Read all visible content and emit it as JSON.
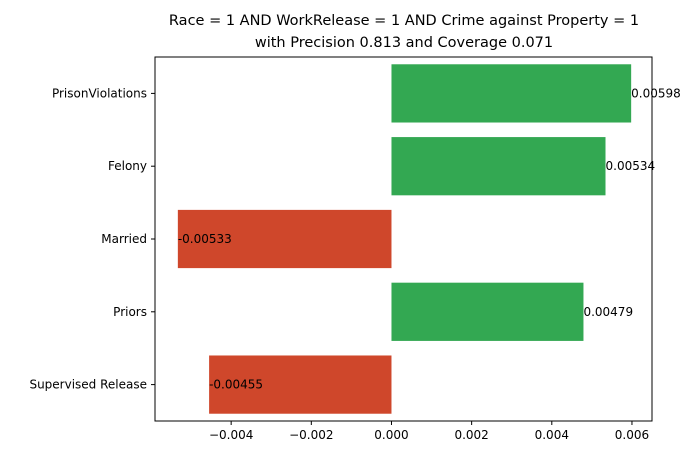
{
  "chart_data": {
    "type": "bar",
    "orientation": "horizontal",
    "title": [
      "Race = 1 AND WorkRelease = 1 AND Crime against Property = 1",
      "with Precision 0.813 and Coverage 0.071"
    ],
    "xlabel": "",
    "ylabel": "",
    "categories": [
      "PrisonViolations",
      "Felony",
      "Married",
      "Priors",
      "Supervised Release"
    ],
    "values": [
      0.00598,
      0.00534,
      -0.00533,
      0.00479,
      -0.00455
    ],
    "value_labels": [
      "0.00598",
      "0.00534",
      "-0.00533",
      "0.00479",
      "-0.00455"
    ],
    "xlim": [
      -0.0059,
      0.0065
    ],
    "xticks": [
      -0.004,
      -0.002,
      0.0,
      0.002,
      0.004,
      0.006
    ],
    "xtick_labels": [
      "−0.004",
      "−0.002",
      "0.000",
      "0.002",
      "0.004",
      "0.006"
    ],
    "grid": false,
    "colors": {
      "positive": "#33a852",
      "negative": "#cf472b"
    }
  }
}
